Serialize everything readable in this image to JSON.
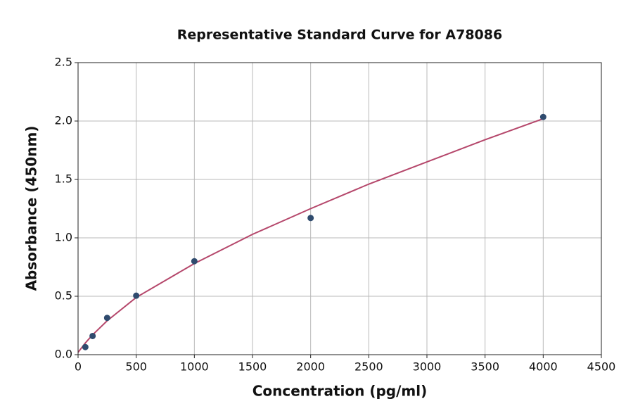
{
  "chart_data": {
    "type": "scatter",
    "title": "Representative Standard Curve for A78086",
    "x_label": "Concentration (pg/ml)",
    "y_label": "Absorbance (450nm)",
    "points": {
      "color": "#2f4b6e",
      "x": [
        62.5,
        125,
        250,
        500,
        1000,
        2000,
        4000
      ],
      "y": [
        0.065,
        0.16,
        0.315,
        0.505,
        0.8,
        1.17,
        2.035
      ]
    },
    "curve": {
      "color": "#b5476b",
      "x": [
        0,
        62.5,
        125,
        250,
        500,
        1000,
        1500,
        2000,
        2500,
        3000,
        3500,
        4000
      ],
      "y": [
        0.02,
        0.1,
        0.17,
        0.29,
        0.49,
        0.78,
        1.03,
        1.25,
        1.46,
        1.65,
        1.84,
        2.02
      ]
    },
    "xlim": [
      0,
      4500
    ],
    "xticks": [
      0,
      500,
      1000,
      1500,
      2000,
      2500,
      3000,
      3500,
      4000,
      4500
    ],
    "ylim": [
      0,
      2.5
    ],
    "yticks": [
      {
        "value": 0,
        "label": "0.0"
      },
      {
        "value": 0.5,
        "label": "0.5"
      },
      {
        "value": 1,
        "label": "1.0"
      },
      {
        "value": 1.5,
        "label": "1.5"
      },
      {
        "value": 2,
        "label": "2.0"
      },
      {
        "value": 2.5,
        "label": "2.5"
      }
    ],
    "grid": true
  }
}
